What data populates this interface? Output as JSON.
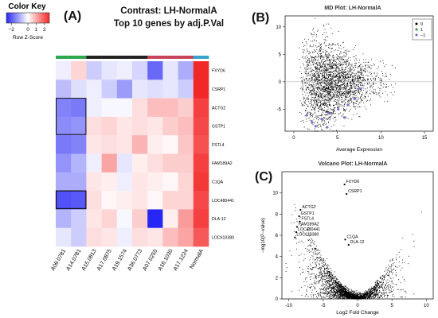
{
  "panels": {
    "a": "(A)",
    "b": "(B)",
    "c": "(C)"
  },
  "color_key": {
    "title": "Color Key",
    "caption": "Row Z-Score",
    "ticks": [
      "−2",
      "0",
      "1",
      "2"
    ],
    "tick_values": [
      -2,
      0,
      1,
      2
    ],
    "range": [
      -2.6,
      2.6
    ],
    "colors": {
      "low": "#2727f5",
      "mid": "#ffffff",
      "high": "#f22727"
    }
  },
  "heatmap_title": [
    "Contrast: LH-NormalA",
    "Top 10 genes by adj.P.Val"
  ],
  "chart_data": [
    {
      "type": "heatmap",
      "title": "Contrast: LH-NormalA Top 10 genes by adj.P.Val",
      "rows": [
        "FXYD6",
        "CSRP1",
        "ACTG2",
        "GSTP1",
        "FSTL4",
        "FAM189A2",
        "C1QA",
        "LOC480441",
        "DLA-12",
        "LOC610380"
      ],
      "columns": [
        "A09.0781",
        "A14.0781",
        "A15.0813",
        "A17.0875",
        "A19.1574",
        "A36.0773",
        "A07.0255",
        "A16.1030",
        "A17.1224",
        "NormalA"
      ],
      "column_groups": [
        "#2ea84f",
        "#2ea84f",
        "#222222",
        "#222222",
        "#222222",
        "#222222",
        "#c8435a",
        "#c8435a",
        "#c8435a",
        "#36a3cc"
      ],
      "values": [
        [
          -0.2,
          0.5,
          -0.6,
          -0.3,
          -0.2,
          -0.5,
          -1.8,
          -0.3,
          -1.0,
          2.6
        ],
        [
          -0.8,
          -0.4,
          -0.2,
          -0.6,
          -1.2,
          -0.3,
          -0.4,
          -0.3,
          -0.6,
          2.6
        ],
        [
          -1.5,
          -1.6,
          -0.2,
          -0.1,
          -0.1,
          0.4,
          0.8,
          0.8,
          0.6,
          2.3
        ],
        [
          -1.4,
          -1.3,
          0.4,
          0.5,
          0.3,
          0.4,
          0.3,
          0.6,
          0.8,
          2.2
        ],
        [
          -1.6,
          -1.5,
          0.3,
          0.4,
          0.3,
          0.9,
          0.2,
          0.1,
          0.7,
          2.1
        ],
        [
          -1.3,
          -0.9,
          -0.2,
          1.1,
          -0.3,
          0.2,
          0.4,
          0.6,
          0.6,
          2.3
        ],
        [
          -1.0,
          -1.0,
          0.3,
          0.2,
          -0.2,
          0.3,
          0.2,
          0.1,
          0.5,
          2.4
        ],
        [
          -2.1,
          -2.0,
          0.4,
          0.1,
          0.2,
          0.3,
          0.1,
          0.5,
          0.5,
          2.2
        ],
        [
          -0.9,
          -0.6,
          0.3,
          0.5,
          -0.1,
          0.6,
          -2.6,
          0.2,
          1.2,
          2.3
        ],
        [
          -0.3,
          -0.6,
          0.4,
          0.3,
          -0.2,
          0.4,
          0.3,
          0.8,
          1.1,
          2.0
        ]
      ]
    },
    {
      "type": "scatter",
      "title": "MD Plot: LH-NormalA",
      "xlabel": "Average Expression",
      "ylabel": "",
      "xlim": [
        -1,
        16
      ],
      "ylim": [
        -9,
        12
      ],
      "xticks": [
        0,
        5,
        10,
        15
      ],
      "yticks": [
        -5,
        0,
        5,
        10
      ],
      "legend": {
        "placement": "top-right",
        "entries": [
          "0",
          "1",
          "−1"
        ]
      },
      "highlighted_points": [
        {
          "x": 2.5,
          "y": -8.1
        },
        {
          "x": 3.2,
          "y": -6.8
        },
        {
          "x": 2.1,
          "y": -7.4
        },
        {
          "x": 4.0,
          "y": -5.7
        },
        {
          "x": 5.1,
          "y": -5.0
        },
        {
          "x": 6.2,
          "y": -4.2
        },
        {
          "x": 7.0,
          "y": -3.1
        },
        {
          "x": 1.5,
          "y": -6.1
        },
        {
          "x": 3.8,
          "y": -8.3
        },
        {
          "x": 5.8,
          "y": -6.5
        },
        {
          "x": 7.5,
          "y": -1.2
        }
      ]
    },
    {
      "type": "scatter",
      "title": "Volcano Plot: LH-NormalA",
      "xlabel": "Log2 Fold Change",
      "ylabel": "−log10(P−value)",
      "xlim": [
        -11,
        11
      ],
      "ylim": [
        0,
        12
      ],
      "xticks": [
        -10,
        -5,
        0,
        5,
        10
      ],
      "yticks": [
        0,
        2,
        4,
        6,
        8,
        10
      ],
      "labeled_points": [
        {
          "label": "FXYD6",
          "x": -1.9,
          "y": 10.8
        },
        {
          "label": "CSRP1",
          "x": -1.6,
          "y": 9.9
        },
        {
          "label": "ACTG2",
          "x": -8.3,
          "y": 8.4
        },
        {
          "label": "GSTP1",
          "x": -8.5,
          "y": 7.8
        },
        {
          "label": "FSTL4",
          "x": -8.4,
          "y": 7.3
        },
        {
          "label": "FAM189A2",
          "x": -8.8,
          "y": 6.8
        },
        {
          "label": "LOC480441",
          "x": -8.9,
          "y": 6.3
        },
        {
          "label": "LOC610380",
          "x": -9.1,
          "y": 5.8
        },
        {
          "label": "C1QA",
          "x": -1.8,
          "y": 5.6
        },
        {
          "label": "DLA-12",
          "x": -1.3,
          "y": 5.1
        }
      ]
    }
  ]
}
